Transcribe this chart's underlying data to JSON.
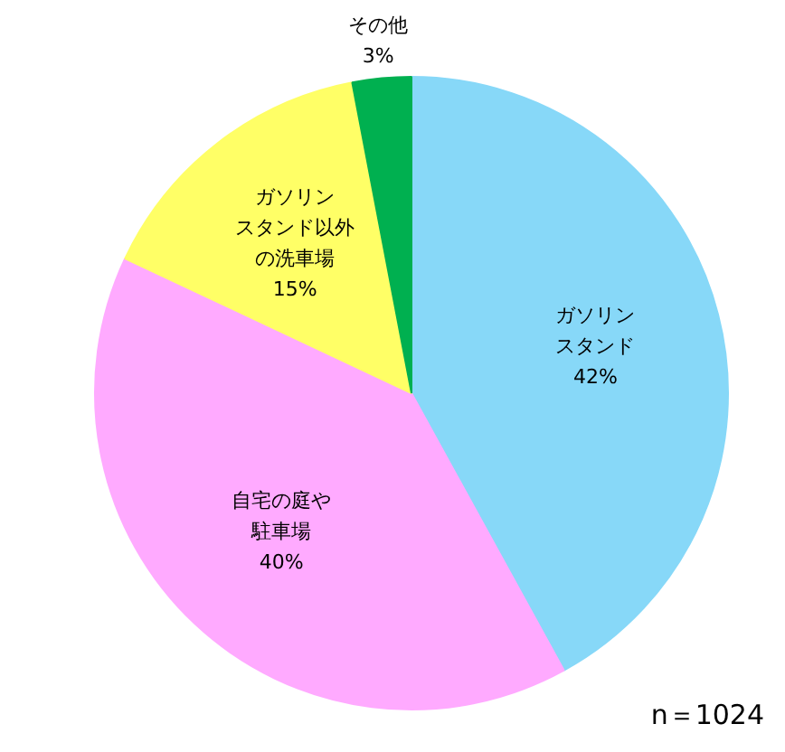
{
  "chart_data": {
    "type": "pie",
    "categories": [
      "ガソリンスタンド",
      "自宅の庭や駐車場",
      "ガソリンスタンド以外の洗車場",
      "その他"
    ],
    "values": [
      42,
      40,
      15,
      3
    ],
    "value_labels": [
      "42%",
      "40%",
      "15%",
      "3%"
    ],
    "colors": [
      "#87d8f8",
      "#ffaaff",
      "#ffff66",
      "#00b050"
    ],
    "annotations": [
      "n＝1024"
    ]
  }
}
